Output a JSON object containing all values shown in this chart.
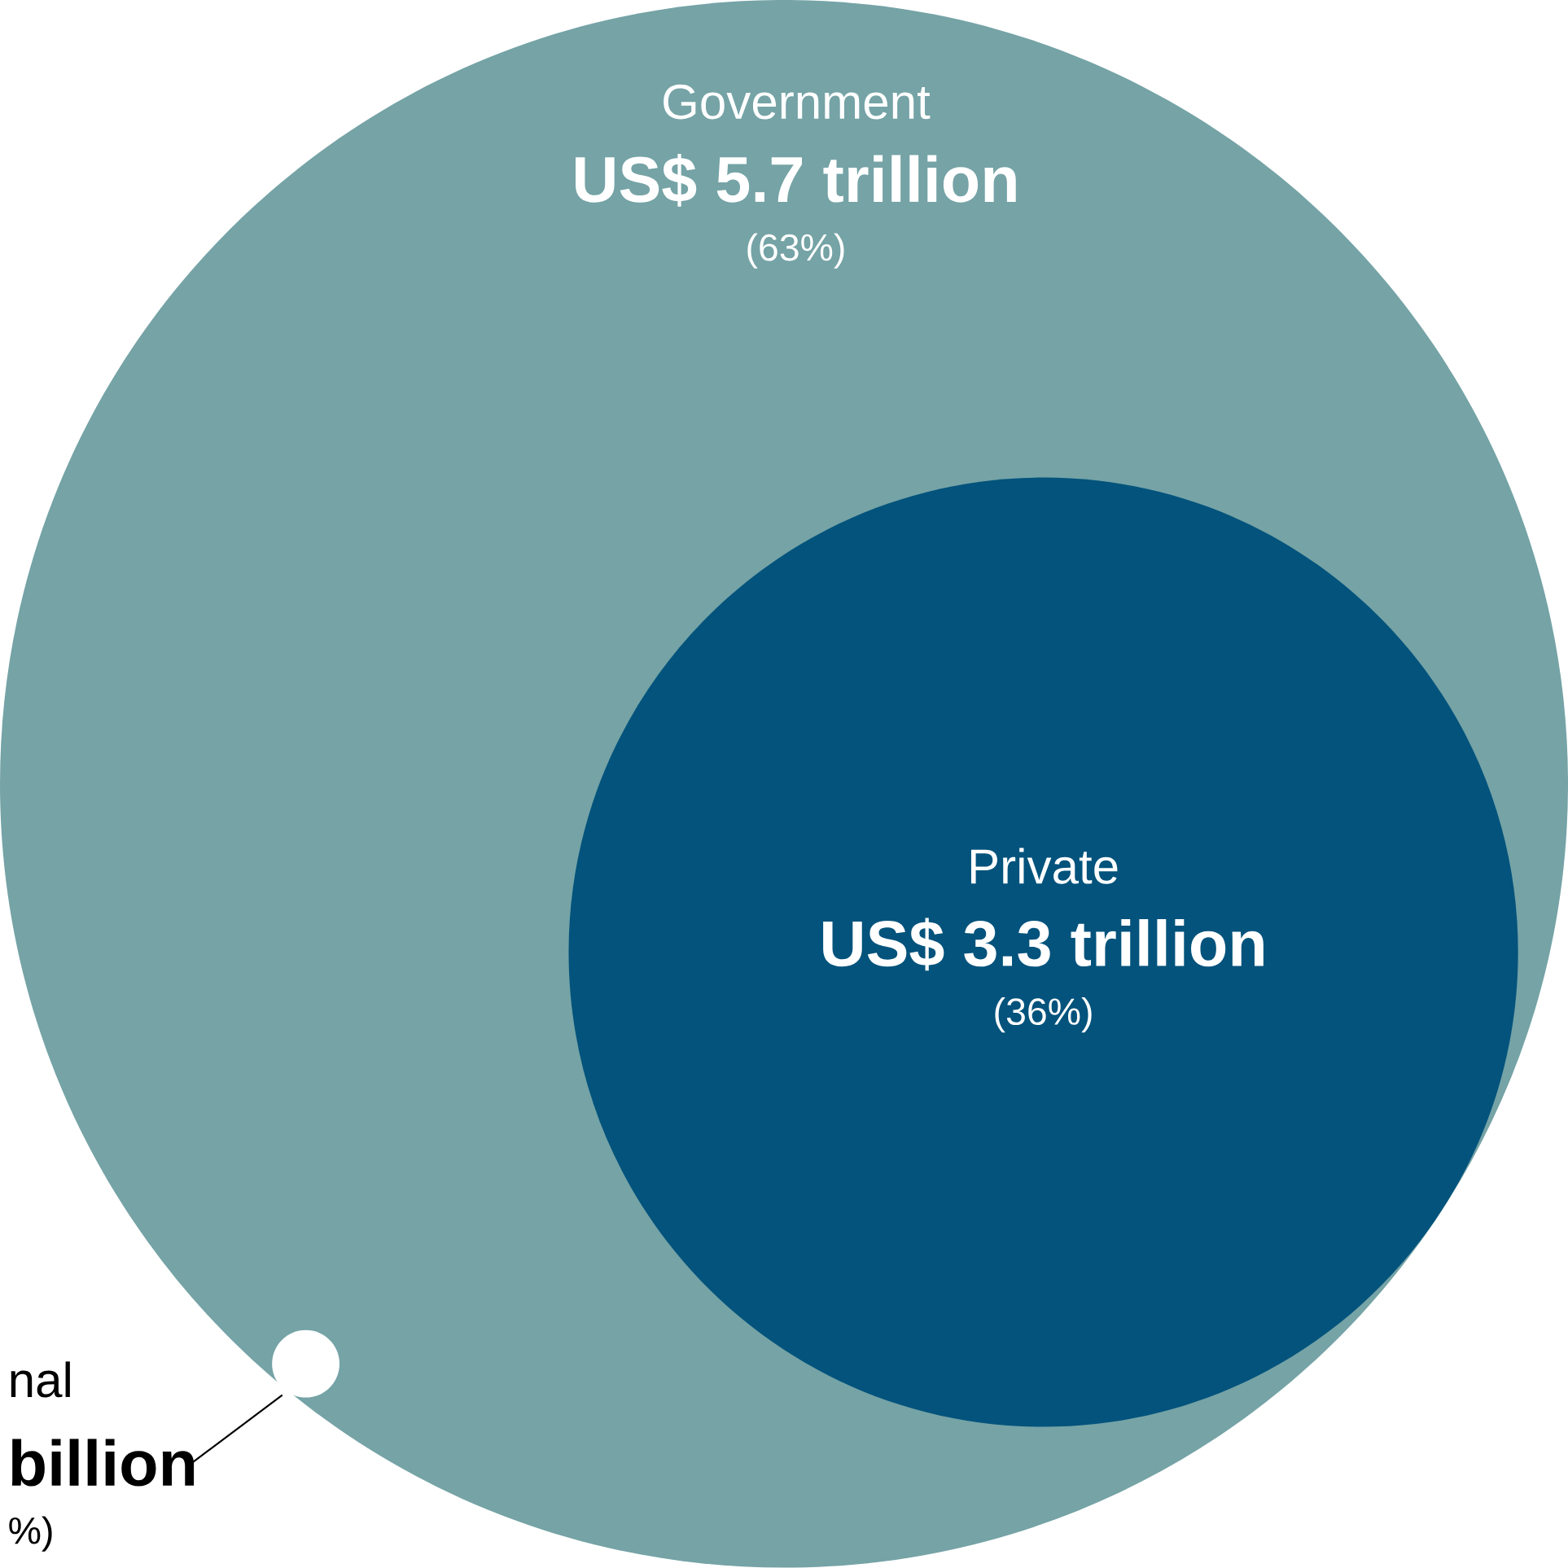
{
  "chart_data": {
    "type": "other",
    "categories": [
      "Government",
      "Private"
    ],
    "values": [
      5.7,
      3.3
    ],
    "value_labels": [
      "US$ 5.7 trillion",
      "US$ 3.3 trillion"
    ],
    "colors": [
      "#75a3a6",
      "#03537c"
    ],
    "annotations": [
      "(63%)",
      "(36%)",
      "nal",
      "billion",
      "%)"
    ]
  }
}
